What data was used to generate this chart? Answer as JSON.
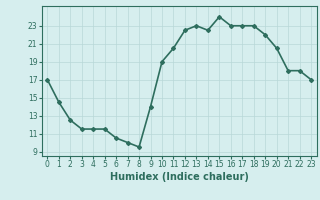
{
  "x": [
    0,
    1,
    2,
    3,
    4,
    5,
    6,
    7,
    8,
    9,
    10,
    11,
    12,
    13,
    14,
    15,
    16,
    17,
    18,
    19,
    20,
    21,
    22,
    23
  ],
  "y": [
    17,
    14.5,
    12.5,
    11.5,
    11.5,
    11.5,
    10.5,
    10,
    9.5,
    14,
    19,
    20.5,
    22.5,
    23,
    22.5,
    24,
    23,
    23,
    23,
    22,
    20.5,
    18,
    18,
    17
  ],
  "line_color": "#2e6e5e",
  "marker": "D",
  "marker_size": 2,
  "bg_color": "#d6eeee",
  "grid_color": "#b8d8d8",
  "xlabel": "Humidex (Indice chaleur)",
  "xlim": [
    -0.5,
    23.5
  ],
  "ylim": [
    8.5,
    25.2
  ],
  "yticks": [
    9,
    11,
    13,
    15,
    17,
    19,
    21,
    23
  ],
  "xticks": [
    0,
    1,
    2,
    3,
    4,
    5,
    6,
    7,
    8,
    9,
    10,
    11,
    12,
    13,
    14,
    15,
    16,
    17,
    18,
    19,
    20,
    21,
    22,
    23
  ],
  "tick_label_fontsize": 5.5,
  "xlabel_fontsize": 7,
  "line_width": 1.2
}
